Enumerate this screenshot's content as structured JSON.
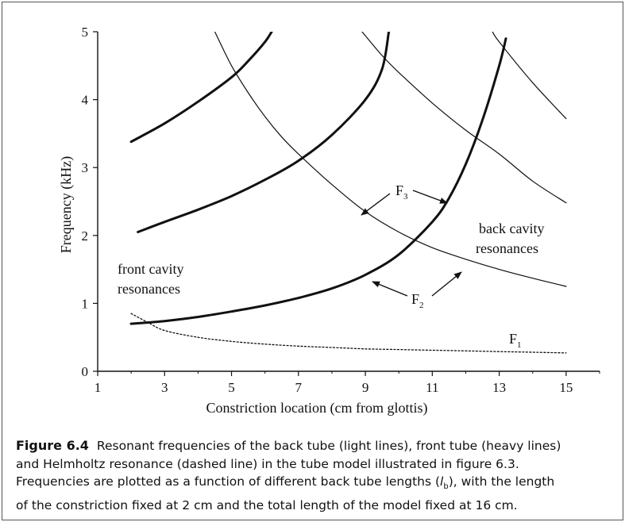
{
  "chart_data": {
    "type": "line",
    "xlabel": "Constriction location (cm from glottis)",
    "ylabel": "Frequency (kHz)",
    "xlim": [
      1,
      16
    ],
    "ylim": [
      0,
      5
    ],
    "xticks": [
      1,
      3,
      5,
      7,
      9,
      11,
      13,
      15
    ],
    "yticks": [
      0,
      1,
      2,
      3,
      4,
      5
    ],
    "grid": false,
    "legend": "none",
    "series": [
      {
        "style": "heavy",
        "x": [
          2,
          3,
          4,
          5,
          6,
          7,
          8,
          9,
          10,
          11,
          11.5,
          12,
          12.5,
          13,
          13.2
        ],
        "y": [
          0.7,
          0.74,
          0.8,
          0.88,
          0.97,
          1.08,
          1.22,
          1.42,
          1.72,
          2.2,
          2.55,
          3.05,
          3.7,
          4.5,
          4.9
        ]
      },
      {
        "style": "heavy",
        "x": [
          2.2,
          3,
          4,
          5,
          6,
          7,
          8,
          9,
          9.5,
          9.7
        ],
        "y": [
          2.05,
          2.2,
          2.38,
          2.58,
          2.82,
          3.1,
          3.48,
          4.0,
          4.45,
          5.0
        ]
      },
      {
        "style": "heavy",
        "x": [
          2,
          3,
          4,
          5,
          5.5,
          6,
          6.2
        ],
        "y": [
          3.38,
          3.65,
          3.97,
          4.33,
          4.57,
          4.85,
          5.0
        ]
      },
      {
        "style": "light",
        "x": [
          4.5,
          5,
          5.5,
          6,
          6.5,
          7,
          8,
          9,
          10,
          11,
          12,
          13,
          14,
          15
        ],
        "y": [
          5.0,
          4.5,
          4.1,
          3.75,
          3.45,
          3.2,
          2.75,
          2.35,
          2.05,
          1.82,
          1.65,
          1.5,
          1.37,
          1.25
        ]
      },
      {
        "style": "light",
        "x": [
          8.9,
          9.5,
          10,
          11,
          12,
          13,
          14,
          15
        ],
        "y": [
          5.0,
          4.65,
          4.4,
          3.95,
          3.55,
          3.2,
          2.8,
          2.48
        ]
      },
      {
        "style": "light",
        "x": [
          12.8,
          13,
          14,
          15
        ],
        "y": [
          5.0,
          4.85,
          4.25,
          3.72
        ]
      },
      {
        "style": "dashed",
        "x": [
          2,
          2.5,
          3,
          4,
          5,
          6,
          7,
          8,
          9,
          10,
          11,
          12,
          13,
          14,
          15
        ],
        "y": [
          0.85,
          0.72,
          0.6,
          0.5,
          0.44,
          0.4,
          0.37,
          0.35,
          0.33,
          0.32,
          0.31,
          0.3,
          0.29,
          0.28,
          0.27
        ]
      }
    ],
    "annotations": {
      "front": [
        "front cavity",
        "resonances"
      ],
      "back": [
        "back cavity",
        "resonances"
      ],
      "f3": "F",
      "f3_sub": "3",
      "f2": "F",
      "f2_sub": "2",
      "f1": "F",
      "f1_sub": "1"
    }
  },
  "caption": {
    "label": "Figure 6.4",
    "lines": [
      "Resonant frequencies of the back tube (light lines), front tube (heavy lines)",
      "and Helmholtz resonance (dashed line) in the tube model illustrated in figure 6.3.",
      "Frequencies are plotted as a function of different back tube lengths (",
      "), with the length",
      "of the constriction fixed at 2 cm and the total length of the model fixed at 16 cm."
    ],
    "lb_main": "l",
    "lb_sub": "b"
  }
}
